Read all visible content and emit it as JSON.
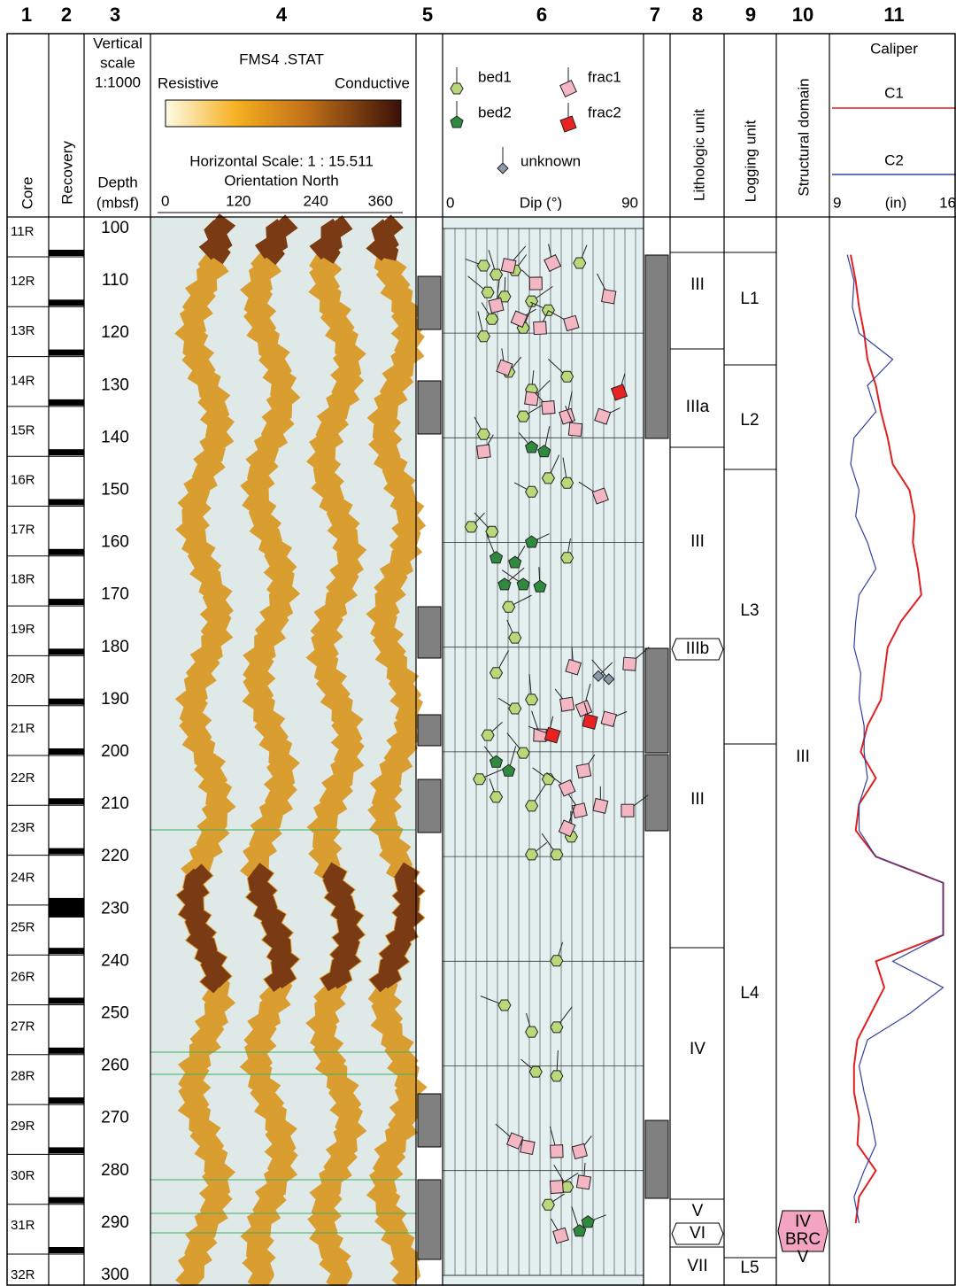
{
  "column_numbers": [
    "1",
    "2",
    "3",
    "4",
    "5",
    "6",
    "7",
    "8",
    "9",
    "10",
    "11"
  ],
  "headers": {
    "core": "Core",
    "recovery": "Recovery",
    "vertical_scale": [
      "Vertical",
      "scale",
      "1:1000"
    ],
    "depth": [
      "Depth",
      "(mbsf)"
    ],
    "fms_title": "FMS4 .STAT",
    "resistive": "Resistive",
    "conductive": "Conductive",
    "horizontal_scale": "Horizontal Scale: 1 : 15.511",
    "orientation": "Orientation North",
    "fms_ticks": [
      0,
      120,
      240,
      360
    ],
    "dip_label": "Dip (°)",
    "dip_ticks": [
      0,
      90
    ],
    "lithologic": "Lithologic unit",
    "logging": "Logging unit",
    "structural": "Structural domain",
    "caliper": "Caliper",
    "c1": "C1",
    "c2": "C2",
    "caliper_unit": "(in)",
    "caliper_ticks": [
      9,
      16
    ]
  },
  "cores": [
    "11R",
    "12R",
    "13R",
    "14R",
    "15R",
    "16R",
    "17R",
    "18R",
    "19R",
    "20R",
    "21R",
    "22R",
    "23R",
    "24R",
    "25R",
    "26R",
    "27R",
    "28R",
    "29R",
    "30R",
    "31R",
    "32R"
  ],
  "depth_ticks": [
    100,
    110,
    120,
    130,
    140,
    150,
    160,
    170,
    180,
    190,
    200,
    210,
    220,
    230,
    240,
    250,
    260,
    270,
    280,
    290,
    300
  ],
  "lithologic_units": [
    "III",
    "IIIa",
    "III",
    "IIIb",
    "III",
    "IV",
    "V",
    "VI",
    "VII"
  ],
  "logging_units": [
    "L1",
    "L2",
    "L3",
    "L4",
    "L5"
  ],
  "structural_domains": [
    [
      "III"
    ],
    [
      "IV",
      "BRC"
    ],
    [
      "V"
    ]
  ],
  "dips": [
    {
      "name": "bed1",
      "points": [
        [
          107.1,
          18
        ],
        [
          108.8,
          24
        ],
        [
          108,
          33
        ],
        [
          112.2,
          20
        ],
        [
          113,
          28
        ],
        [
          113.9,
          41
        ],
        [
          117.3,
          22
        ],
        [
          119,
          37
        ],
        [
          115.6,
          49
        ],
        [
          120.6,
          18
        ],
        [
          127.4,
          30
        ],
        [
          128.3,
          58
        ],
        [
          130.8,
          41
        ],
        [
          135.9,
          37
        ],
        [
          139.3,
          18
        ],
        [
          147.7,
          49
        ],
        [
          150.3,
          41
        ],
        [
          148.6,
          58
        ],
        [
          157,
          12
        ],
        [
          157.9,
          22
        ],
        [
          162.9,
          58
        ],
        [
          172.3,
          30
        ],
        [
          178.2,
          33
        ],
        [
          184.9,
          24
        ],
        [
          191.7,
          33
        ],
        [
          190,
          41
        ],
        [
          196.8,
          20
        ],
        [
          200.2,
          37
        ],
        [
          196.8,
          49
        ],
        [
          205.2,
          16
        ],
        [
          208.6,
          24
        ],
        [
          210.3,
          41
        ],
        [
          205.2,
          49
        ],
        [
          216.2,
          60
        ],
        [
          219.6,
          41
        ],
        [
          219.6,
          53
        ],
        [
          239.9,
          53
        ],
        [
          248.4,
          28
        ],
        [
          253.5,
          41
        ],
        [
          252.6,
          53
        ],
        [
          261.1,
          43
        ],
        [
          261.9,
          53
        ],
        [
          286.5,
          49
        ],
        [
          283.1,
          58
        ],
        [
          106.6,
          64
        ]
      ]
    },
    {
      "name": "bed2",
      "points": [
        [
          141.8,
          41
        ],
        [
          142.6,
          47
        ],
        [
          159.9,
          41
        ],
        [
          162.9,
          24
        ],
        [
          163.8,
          33
        ],
        [
          168,
          37
        ],
        [
          168.4,
          45
        ],
        [
          168,
          28
        ],
        [
          201.9,
          24
        ],
        [
          203.6,
          30
        ],
        [
          289.8,
          68
        ],
        [
          291.5,
          64
        ]
      ]
    },
    {
      "name": "frac1",
      "points": [
        [
          106.6,
          51
        ],
        [
          107.1,
          30
        ],
        [
          110.5,
          43
        ],
        [
          114.7,
          24
        ],
        [
          117.3,
          35
        ],
        [
          113,
          78
        ],
        [
          119,
          45
        ],
        [
          118.1,
          60
        ],
        [
          126.6,
          28
        ],
        [
          132.5,
          41
        ],
        [
          134.2,
          49
        ],
        [
          135.9,
          58
        ],
        [
          135.9,
          75
        ],
        [
          138.4,
          62
        ],
        [
          142.6,
          18
        ],
        [
          151.1,
          74
        ],
        [
          183.8,
          61
        ],
        [
          183.2,
          88
        ],
        [
          190.9,
          58
        ],
        [
          191.7,
          66
        ],
        [
          193.7,
          78
        ],
        [
          196.8,
          45
        ],
        [
          203.6,
          66
        ],
        [
          206.9,
          58
        ],
        [
          210.3,
          74
        ],
        [
          211.2,
          87
        ],
        [
          211.2,
          64
        ],
        [
          214.6,
          58
        ],
        [
          275.5,
          39
        ],
        [
          276.3,
          53
        ],
        [
          276.3,
          64
        ],
        [
          274.3,
          33
        ],
        [
          282.2,
          66
        ],
        [
          283.1,
          53
        ],
        [
          292.4,
          55
        ]
      ]
    },
    {
      "name": "frac2",
      "points": [
        [
          131.3,
          83
        ],
        [
          196.8,
          51
        ],
        [
          194.2,
          69
        ]
      ]
    },
    {
      "name": "unknown",
      "points": [
        [
          185.5,
          73
        ],
        [
          186.1,
          78
        ]
      ]
    }
  ],
  "caliper": {
    "depth": [
      105,
      110,
      115,
      120,
      125,
      130,
      135,
      140,
      145,
      150,
      155,
      160,
      165,
      170,
      175,
      180,
      185,
      190,
      195,
      200,
      205,
      210,
      215,
      220,
      225,
      230,
      235,
      240,
      245,
      250,
      255,
      260,
      265,
      270,
      275,
      280,
      285,
      290
    ],
    "C1": [
      10,
      10.3,
      10.5,
      10.8,
      11,
      11.5,
      11.8,
      12.2,
      12.5,
      13.5,
      13.8,
      13.7,
      14,
      14.2,
      13,
      12.2,
      12,
      11.8,
      11,
      10.6,
      11.5,
      10.5,
      10.3,
      11.5,
      15.5,
      15.5,
      15.5,
      11.5,
      12,
      11.2,
      10.4,
      10.2,
      10.2,
      10.5,
      10.4,
      11.5,
      10.5,
      10.3
    ],
    "C2": [
      9.8,
      10.2,
      10.1,
      10.5,
      12.5,
      11,
      11.5,
      10.2,
      10,
      10.5,
      10.3,
      11,
      11.5,
      10.5,
      10.3,
      10.2,
      10.6,
      10.5,
      10.8,
      10.8,
      11,
      10.5,
      10.5,
      11.5,
      15.5,
      15.5,
      15.5,
      12.5,
      15.5,
      13.5,
      11,
      10.5,
      10.8,
      11.2,
      11.5,
      10.8,
      10.2,
      10.5
    ]
  }
}
